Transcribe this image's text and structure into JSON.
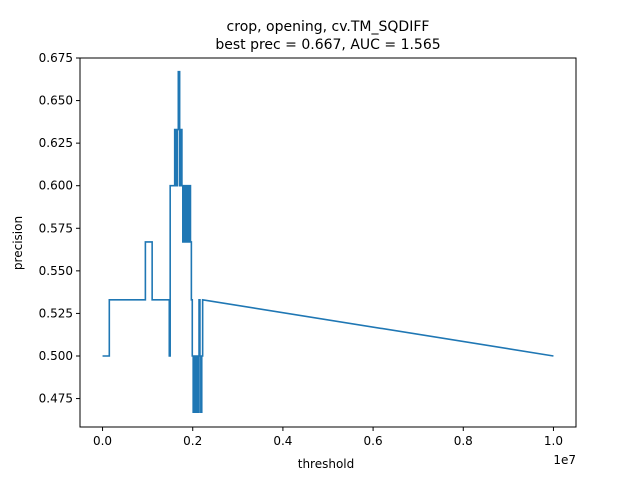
{
  "chart_data": {
    "type": "line",
    "title": "crop, opening, cv.TM_SQDIFF",
    "subtitle": "best prec = 0.667, AUC = 1.565",
    "xlabel": "threshold",
    "ylabel": "precision",
    "x_offset_label": "1e7",
    "x_scale": 10000000,
    "xlim": [
      -0.05,
      1.05
    ],
    "ylim": [
      0.4583,
      0.675
    ],
    "x_ticks": [
      0.0,
      0.2,
      0.4,
      0.6,
      0.8,
      1.0
    ],
    "x_tick_labels": [
      "0.0",
      "0.2",
      "0.4",
      "0.6",
      "0.8",
      "1.0"
    ],
    "y_ticks": [
      0.475,
      0.5,
      0.525,
      0.55,
      0.575,
      0.6,
      0.625,
      0.65,
      0.675
    ],
    "y_tick_labels": [
      "0.475",
      "0.500",
      "0.525",
      "0.550",
      "0.575",
      "0.600",
      "0.625",
      "0.650",
      "0.675"
    ],
    "grid": false,
    "legend": "none",
    "series": [
      {
        "color": "#1f77b4",
        "x": [
          0.0,
          0.015,
          0.015,
          0.017,
          0.017,
          0.095,
          0.095,
          0.11,
          0.11,
          0.148,
          0.148,
          0.15,
          0.15,
          0.153,
          0.153,
          0.16,
          0.16,
          0.163,
          0.163,
          0.166,
          0.166,
          0.168,
          0.168,
          0.171,
          0.171,
          0.173,
          0.173,
          0.176,
          0.176,
          0.178,
          0.178,
          0.181,
          0.181,
          0.183,
          0.183,
          0.185,
          0.185,
          0.187,
          0.187,
          0.189,
          0.189,
          0.191,
          0.191,
          0.193,
          0.193,
          0.195,
          0.195,
          0.197,
          0.197,
          0.199,
          0.199,
          0.201,
          0.201,
          0.204,
          0.204,
          0.206,
          0.206,
          0.208,
          0.208,
          0.211,
          0.211,
          0.214,
          0.214,
          0.216,
          0.216,
          0.218,
          0.218,
          0.22,
          0.22,
          0.222,
          0.222,
          1.0
        ],
        "y": [
          0.5,
          0.5,
          0.533,
          0.533,
          0.533,
          0.533,
          0.567,
          0.567,
          0.533,
          0.533,
          0.5,
          0.5,
          0.6,
          0.6,
          0.6,
          0.6,
          0.633,
          0.633,
          0.6,
          0.6,
          0.633,
          0.633,
          0.667,
          0.667,
          0.6,
          0.6,
          0.633,
          0.633,
          0.6,
          0.6,
          0.567,
          0.567,
          0.6,
          0.6,
          0.567,
          0.567,
          0.6,
          0.6,
          0.567,
          0.567,
          0.6,
          0.6,
          0.567,
          0.567,
          0.6,
          0.6,
          0.567,
          0.567,
          0.533,
          0.533,
          0.5,
          0.5,
          0.467,
          0.467,
          0.5,
          0.5,
          0.467,
          0.467,
          0.5,
          0.5,
          0.467,
          0.467,
          0.533,
          0.533,
          0.5,
          0.5,
          0.467,
          0.467,
          0.5,
          0.5,
          0.533,
          0.5
        ]
      }
    ]
  }
}
